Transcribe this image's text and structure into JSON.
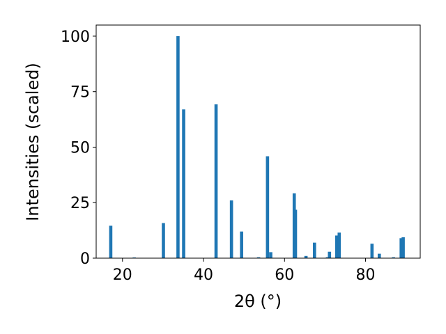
{
  "chart_data": {
    "type": "bar",
    "xlabel": "2θ (°)",
    "ylabel": "Intensities (scaled)",
    "xlim": [
      13.5,
      93.5
    ],
    "ylim": [
      0,
      105
    ],
    "xticks": [
      20,
      40,
      60,
      80
    ],
    "yticks": [
      0,
      25,
      50,
      75,
      100
    ],
    "grid": false,
    "bar_color": "#1f77b4",
    "bars": [
      {
        "x": 17.1,
        "y": 14.6
      },
      {
        "x": 22.9,
        "y": 0.3
      },
      {
        "x": 30.1,
        "y": 15.8
      },
      {
        "x": 33.7,
        "y": 100
      },
      {
        "x": 35.1,
        "y": 67.0
      },
      {
        "x": 43.1,
        "y": 69.3
      },
      {
        "x": 46.9,
        "y": 26.0
      },
      {
        "x": 49.4,
        "y": 12.0
      },
      {
        "x": 53.6,
        "y": 0.4
      },
      {
        "x": 55.8,
        "y": 45.9
      },
      {
        "x": 56.6,
        "y": 2.7
      },
      {
        "x": 62.4,
        "y": 29.2
      },
      {
        "x": 62.7,
        "y": 21.8
      },
      {
        "x": 65.3,
        "y": 1.0
      },
      {
        "x": 67.4,
        "y": 7.0
      },
      {
        "x": 70.6,
        "y": 0.4
      },
      {
        "x": 71.1,
        "y": 2.9
      },
      {
        "x": 72.9,
        "y": 10.2
      },
      {
        "x": 73.5,
        "y": 11.5
      },
      {
        "x": 81.6,
        "y": 6.5
      },
      {
        "x": 83.4,
        "y": 2.0
      },
      {
        "x": 86.9,
        "y": 0.4
      },
      {
        "x": 88.8,
        "y": 9.0
      },
      {
        "x": 89.3,
        "y": 9.4
      }
    ]
  }
}
